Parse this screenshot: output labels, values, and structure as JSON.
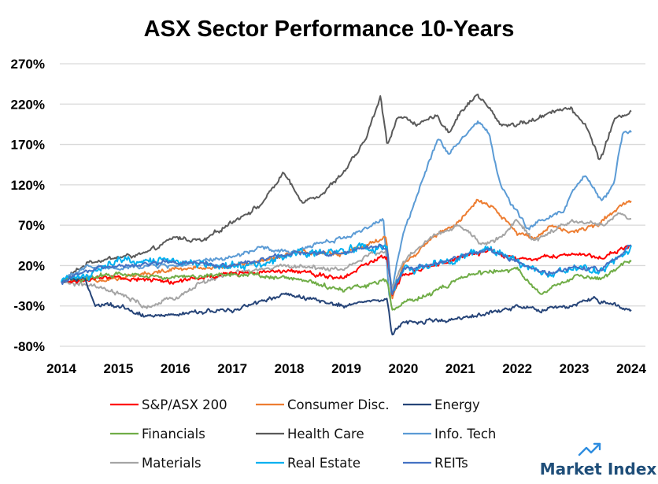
{
  "chart_data": {
    "type": "line",
    "title": "ASX Sector Performance 10-Years",
    "xlabel": "",
    "ylabel": "",
    "xlim": [
      2014,
      2024
    ],
    "ylim": [
      -80,
      270
    ],
    "x_ticks": [
      "2014",
      "2015",
      "2016",
      "2017",
      "2018",
      "2019",
      "2020",
      "2021",
      "2022",
      "2023",
      "2024"
    ],
    "y_ticks": [
      {
        "value": 270,
        "label": "270%"
      },
      {
        "value": 220,
        "label": "220%"
      },
      {
        "value": 170,
        "label": "170%"
      },
      {
        "value": 120,
        "label": "120%"
      },
      {
        "value": 70,
        "label": "70%"
      },
      {
        "value": 20,
        "label": "20%"
      },
      {
        "value": -30,
        "label": "-30%"
      },
      {
        "value": -80,
        "label": "-80%"
      }
    ],
    "grid": "horizontal",
    "legend_position": "bottom",
    "series": [
      {
        "name": "Health Care",
        "color": "#5a5a5a",
        "points": [
          [
            2014,
            0
          ],
          [
            2014.5,
            25
          ],
          [
            2015,
            30
          ],
          [
            2015.5,
            35
          ],
          [
            2016,
            55
          ],
          [
            2016.5,
            50
          ],
          [
            2017,
            75
          ],
          [
            2017.5,
            95
          ],
          [
            2017.9,
            135
          ],
          [
            2018.2,
            100
          ],
          [
            2018.6,
            110
          ],
          [
            2019,
            140
          ],
          [
            2019.3,
            170
          ],
          [
            2019.6,
            228
          ],
          [
            2019.72,
            170
          ],
          [
            2019.9,
            205
          ],
          [
            2020.3,
            195
          ],
          [
            2020.6,
            205
          ],
          [
            2020.8,
            185
          ],
          [
            2021,
            210
          ],
          [
            2021.3,
            232
          ],
          [
            2021.5,
            215
          ],
          [
            2021.7,
            195
          ],
          [
            2022,
            195
          ],
          [
            2022.3,
            200
          ],
          [
            2022.6,
            212
          ],
          [
            2022.9,
            215
          ],
          [
            2023.2,
            195
          ],
          [
            2023.45,
            150
          ],
          [
            2023.7,
            200
          ],
          [
            2024,
            212
          ]
        ]
      },
      {
        "name": "Info. Tech",
        "color": "#5b9bd5",
        "points": [
          [
            2014,
            0
          ],
          [
            2014.5,
            20
          ],
          [
            2015,
            15
          ],
          [
            2015.5,
            20
          ],
          [
            2016,
            20
          ],
          [
            2016.5,
            25
          ],
          [
            2017,
            30
          ],
          [
            2017.5,
            42
          ],
          [
            2018,
            35
          ],
          [
            2018.5,
            48
          ],
          [
            2019,
            55
          ],
          [
            2019.5,
            72
          ],
          [
            2019.65,
            78
          ],
          [
            2019.76,
            -25
          ],
          [
            2020,
            60
          ],
          [
            2020.3,
            120
          ],
          [
            2020.6,
            178
          ],
          [
            2020.8,
            160
          ],
          [
            2021,
            175
          ],
          [
            2021.3,
            198
          ],
          [
            2021.5,
            185
          ],
          [
            2021.7,
            120
          ],
          [
            2022,
            85
          ],
          [
            2022.2,
            65
          ],
          [
            2022.5,
            80
          ],
          [
            2022.8,
            85
          ],
          [
            2023,
            115
          ],
          [
            2023.2,
            130
          ],
          [
            2023.5,
            100
          ],
          [
            2023.7,
            125
          ],
          [
            2023.85,
            185
          ],
          [
            2024,
            185
          ]
        ]
      },
      {
        "name": "Consumer Disc.",
        "color": "#ed7d31",
        "points": [
          [
            2014,
            0
          ],
          [
            2015,
            5
          ],
          [
            2015.5,
            10
          ],
          [
            2016,
            15
          ],
          [
            2017,
            20
          ],
          [
            2017.5,
            25
          ],
          [
            2018,
            35
          ],
          [
            2018.9,
            35
          ],
          [
            2019.5,
            50
          ],
          [
            2019.7,
            55
          ],
          [
            2019.8,
            -20
          ],
          [
            2020,
            20
          ],
          [
            2020.5,
            55
          ],
          [
            2021,
            75
          ],
          [
            2021.3,
            100
          ],
          [
            2021.6,
            90
          ],
          [
            2022,
            60
          ],
          [
            2022.3,
            55
          ],
          [
            2022.6,
            70
          ],
          [
            2023,
            60
          ],
          [
            2023.5,
            75
          ],
          [
            2023.8,
            95
          ],
          [
            2024,
            100
          ]
        ]
      },
      {
        "name": "Materials",
        "color": "#a5a5a5",
        "points": [
          [
            2014,
            0
          ],
          [
            2014.5,
            -5
          ],
          [
            2015,
            -15
          ],
          [
            2015.5,
            -32
          ],
          [
            2016,
            -20
          ],
          [
            2016.5,
            0
          ],
          [
            2017,
            10
          ],
          [
            2018,
            20
          ],
          [
            2018.9,
            15
          ],
          [
            2019.5,
            35
          ],
          [
            2019.7,
            40
          ],
          [
            2019.8,
            -10
          ],
          [
            2020,
            25
          ],
          [
            2020.5,
            55
          ],
          [
            2021,
            70
          ],
          [
            2021.4,
            45
          ],
          [
            2021.7,
            55
          ],
          [
            2022,
            75
          ],
          [
            2022.3,
            50
          ],
          [
            2022.6,
            62
          ],
          [
            2023,
            75
          ],
          [
            2023.5,
            70
          ],
          [
            2023.8,
            85
          ],
          [
            2024,
            78
          ]
        ]
      },
      {
        "name": "S&P/ASX 200",
        "color": "#ff0000",
        "points": [
          [
            2014,
            0
          ],
          [
            2015,
            5
          ],
          [
            2016,
            0
          ],
          [
            2016.5,
            5
          ],
          [
            2017,
            10
          ],
          [
            2018,
            15
          ],
          [
            2018.9,
            5
          ],
          [
            2019.6,
            30
          ],
          [
            2019.72,
            32
          ],
          [
            2019.8,
            -15
          ],
          [
            2020,
            10
          ],
          [
            2020.5,
            20
          ],
          [
            2021,
            30
          ],
          [
            2021.5,
            38
          ],
          [
            2022,
            28
          ],
          [
            2022.6,
            30
          ],
          [
            2023,
            35
          ],
          [
            2023.5,
            30
          ],
          [
            2024,
            45
          ]
        ]
      },
      {
        "name": "Financials",
        "color": "#70ad47",
        "points": [
          [
            2014,
            0
          ],
          [
            2015,
            10
          ],
          [
            2016,
            5
          ],
          [
            2017,
            10
          ],
          [
            2018,
            5
          ],
          [
            2018.9,
            -10
          ],
          [
            2019.6,
            0
          ],
          [
            2019.72,
            2
          ],
          [
            2019.8,
            -35
          ],
          [
            2020,
            -25
          ],
          [
            2020.5,
            -15
          ],
          [
            2021,
            5
          ],
          [
            2021.5,
            12
          ],
          [
            2022,
            15
          ],
          [
            2022.4,
            -15
          ],
          [
            2023,
            5
          ],
          [
            2023.5,
            5
          ],
          [
            2024,
            25
          ]
        ]
      },
      {
        "name": "Energy",
        "color": "#264478",
        "points": [
          [
            2014,
            0
          ],
          [
            2014.4,
            5
          ],
          [
            2014.6,
            -30
          ],
          [
            2015,
            -30
          ],
          [
            2015.5,
            -45
          ],
          [
            2016,
            -40
          ],
          [
            2017,
            -35
          ],
          [
            2017.5,
            -25
          ],
          [
            2018,
            -15
          ],
          [
            2018.9,
            -30
          ],
          [
            2019.6,
            -22
          ],
          [
            2019.72,
            -25
          ],
          [
            2019.8,
            -65
          ],
          [
            2020,
            -50
          ],
          [
            2020.5,
            -48
          ],
          [
            2021,
            -45
          ],
          [
            2021.5,
            -40
          ],
          [
            2022,
            -30
          ],
          [
            2022.5,
            -35
          ],
          [
            2023,
            -30
          ],
          [
            2023.3,
            -20
          ],
          [
            2023.7,
            -30
          ],
          [
            2024,
            -35
          ]
        ]
      },
      {
        "name": "Real Estate",
        "color": "#00b0f0",
        "points": [
          [
            2014,
            0
          ],
          [
            2014.5,
            10
          ],
          [
            2015,
            25
          ],
          [
            2016,
            25
          ],
          [
            2017,
            20
          ],
          [
            2017.5,
            20
          ],
          [
            2018,
            35
          ],
          [
            2019,
            40
          ],
          [
            2019.6,
            45
          ],
          [
            2019.72,
            42
          ],
          [
            2019.8,
            -20
          ],
          [
            2020,
            15
          ],
          [
            2020.5,
            20
          ],
          [
            2021,
            30
          ],
          [
            2021.5,
            40
          ],
          [
            2022,
            25
          ],
          [
            2022.5,
            5
          ],
          [
            2023,
            20
          ],
          [
            2023.5,
            15
          ],
          [
            2024,
            45
          ]
        ]
      },
      {
        "name": "REITs",
        "color": "#4472c4",
        "points": [
          [
            2014,
            0
          ],
          [
            2014.5,
            15
          ],
          [
            2015,
            20
          ],
          [
            2016,
            25
          ],
          [
            2017,
            20
          ],
          [
            2018,
            35
          ],
          [
            2019,
            35
          ],
          [
            2019.6,
            45
          ],
          [
            2019.72,
            40
          ],
          [
            2019.8,
            -15
          ],
          [
            2020,
            15
          ],
          [
            2020.5,
            22
          ],
          [
            2021,
            30
          ],
          [
            2021.5,
            40
          ],
          [
            2022,
            25
          ],
          [
            2022.5,
            10
          ],
          [
            2023,
            20
          ],
          [
            2023.5,
            15
          ],
          [
            2024,
            45
          ]
        ]
      }
    ],
    "legend": [
      {
        "name": "S&P/ASX 200",
        "color": "#ff0000"
      },
      {
        "name": "Consumer Disc.",
        "color": "#ed7d31"
      },
      {
        "name": "Energy",
        "color": "#264478"
      },
      {
        "name": "Financials",
        "color": "#70ad47"
      },
      {
        "name": "Health Care",
        "color": "#5a5a5a"
      },
      {
        "name": "Info. Tech",
        "color": "#5b9bd5"
      },
      {
        "name": "Materials",
        "color": "#a5a5a5"
      },
      {
        "name": "Real Estate",
        "color": "#00b0f0"
      },
      {
        "name": "REITs",
        "color": "#4472c4"
      }
    ]
  },
  "branding": {
    "logo_text": "Market Index",
    "logo_icon": "trend-arrow-icon",
    "color": "#1f4e79",
    "icon_color": "#2e8de0"
  }
}
